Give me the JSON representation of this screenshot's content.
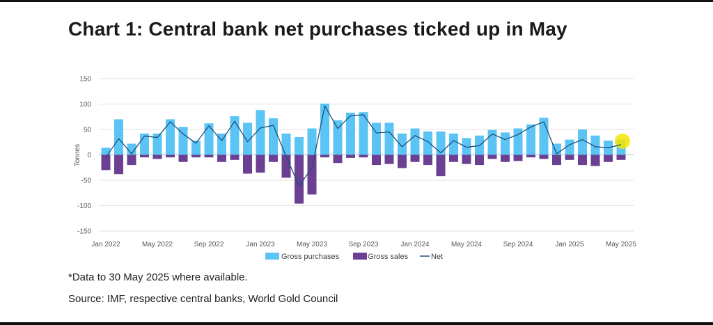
{
  "title": "Chart 1: Central bank net purchases ticked up in May",
  "footnote": "*Data to 30 May 2025 where available.",
  "source": "Source: IMF, respective central banks, World Gold Council",
  "colors": {
    "purchases": "#5bc4f5",
    "sales": "#6b3f92",
    "net": "#1f4e79",
    "highlight": "#f5e600"
  },
  "chart_data": {
    "type": "bar",
    "ylabel": "Tonnes",
    "ylim": [
      -150,
      150
    ],
    "yticks": [
      150,
      100,
      50,
      0,
      -50,
      -100,
      -150
    ],
    "x_tick_labels": [
      "Jan 2022",
      "May 2022",
      "Sep 2022",
      "Jan 2023",
      "May 2023",
      "Sep 2023",
      "Jan 2024",
      "May 2024",
      "Sep 2024",
      "Jan 2025",
      "May 2025"
    ],
    "categories": [
      "Jan 2022",
      "Feb 2022",
      "Mar 2022",
      "Apr 2022",
      "May 2022",
      "Jun 2022",
      "Jul 2022",
      "Aug 2022",
      "Sep 2022",
      "Oct 2022",
      "Nov 2022",
      "Dec 2022",
      "Jan 2023",
      "Feb 2023",
      "Mar 2023",
      "Apr 2023",
      "May 2023",
      "Jun 2023",
      "Jul 2023",
      "Aug 2023",
      "Sep 2023",
      "Oct 2023",
      "Nov 2023",
      "Dec 2023",
      "Jan 2024",
      "Feb 2024",
      "Mar 2024",
      "Apr 2024",
      "May 2024",
      "Jun 2024",
      "Jul 2024",
      "Aug 2024",
      "Sep 2024",
      "Oct 2024",
      "Nov 2024",
      "Dec 2024",
      "Jan 2025",
      "Feb 2025",
      "Mar 2025",
      "Apr 2025",
      "May 2025"
    ],
    "series": [
      {
        "name": "Gross purchases",
        "type": "bar",
        "values": [
          14,
          70,
          22,
          42,
          42,
          70,
          55,
          28,
          62,
          42,
          76,
          63,
          88,
          72,
          42,
          35,
          52,
          101,
          68,
          83,
          84,
          63,
          63,
          42,
          52,
          46,
          46,
          42,
          33,
          38,
          49,
          44,
          52,
          60,
          73,
          22,
          30,
          50,
          38,
          28,
          30
        ]
      },
      {
        "name": "Gross sales",
        "type": "bar",
        "values": [
          -30,
          -38,
          -20,
          -5,
          -8,
          -5,
          -14,
          -5,
          -5,
          -14,
          -10,
          -37,
          -35,
          -14,
          -45,
          -96,
          -78,
          -5,
          -16,
          -6,
          -5,
          -20,
          -18,
          -26,
          -14,
          -20,
          -42,
          -14,
          -18,
          -20,
          -8,
          -14,
          -12,
          -5,
          -8,
          -20,
          -10,
          -20,
          -22,
          -14,
          -10
        ]
      },
      {
        "name": "Net",
        "type": "line",
        "values": [
          -5,
          32,
          2,
          37,
          34,
          65,
          41,
          23,
          57,
          28,
          66,
          26,
          53,
          58,
          -3,
          -61,
          -26,
          96,
          52,
          77,
          79,
          43,
          45,
          16,
          38,
          26,
          4,
          28,
          15,
          18,
          41,
          30,
          40,
          55,
          65,
          2,
          20,
          30,
          16,
          14,
          20
        ]
      }
    ],
    "legend_position": "bottom",
    "grid": true
  }
}
